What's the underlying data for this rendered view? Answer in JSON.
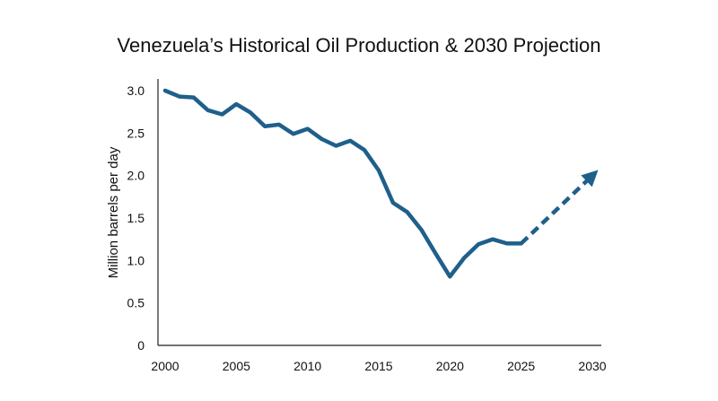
{
  "chart_data": {
    "type": "line",
    "title": "Venezuela’s Historical Oil Production & 2030 Projection",
    "xlabel": "",
    "ylabel": "Million barrels per day",
    "xlim": [
      2000,
      2030
    ],
    "ylim": [
      0,
      3.0
    ],
    "x_ticks": [
      "2000",
      "2005",
      "2010",
      "2015",
      "2020",
      "2025",
      "2030"
    ],
    "y_ticks": [
      "0",
      "0.5",
      "1.0",
      "1.5",
      "2.0",
      "2.5",
      "3.0"
    ],
    "grid": false,
    "series": [
      {
        "style": "solid",
        "color": "#1f5f8b",
        "x": [
          2000,
          2001,
          2002,
          2003,
          2004,
          2005,
          2006,
          2007,
          2008,
          2009,
          2010,
          2011,
          2012,
          2013,
          2014,
          2015,
          2016,
          2017,
          2018,
          2019,
          2020,
          2021,
          2022,
          2023,
          2024,
          2025
        ],
        "y": [
          3.0,
          2.93,
          2.92,
          2.77,
          2.72,
          2.84,
          2.74,
          2.58,
          2.6,
          2.49,
          2.55,
          2.43,
          2.35,
          2.41,
          2.3,
          2.06,
          1.68,
          1.57,
          1.36,
          1.08,
          0.81,
          1.03,
          1.19,
          1.25,
          1.2,
          1.2
        ]
      },
      {
        "style": "dashed",
        "color": "#1f5f8b",
        "arrow": true,
        "x": [
          2025,
          2030
        ],
        "y": [
          1.2,
          2.0
        ]
      }
    ]
  }
}
